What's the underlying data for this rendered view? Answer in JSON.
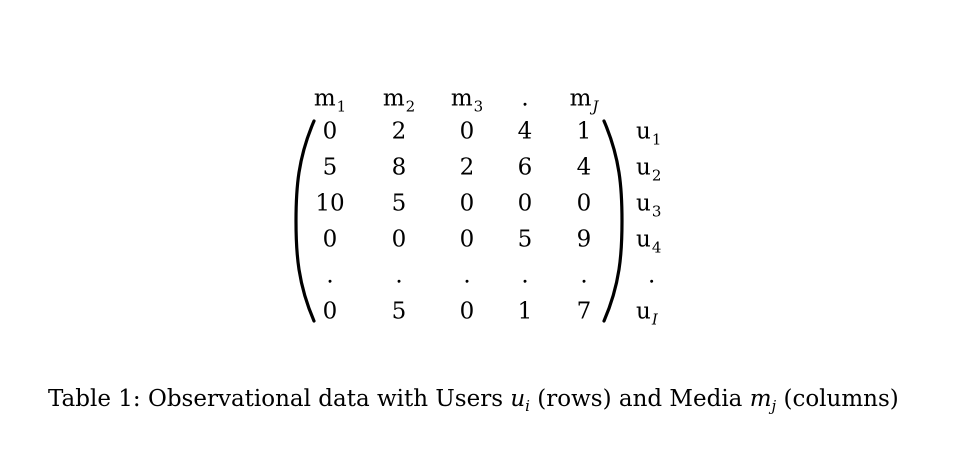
{
  "matrix": {
    "column_headers": [
      {
        "base": "m",
        "sub": "1",
        "sub_italic": false
      },
      {
        "base": "m",
        "sub": "2",
        "sub_italic": false
      },
      {
        "base": "m",
        "sub": "3",
        "sub_italic": false
      },
      {
        "base": ".",
        "sub": "",
        "sub_italic": false
      },
      {
        "base": "m",
        "sub": "J",
        "sub_italic": true
      }
    ],
    "row_labels": [
      {
        "base": "u",
        "sub": "1",
        "sub_italic": false
      },
      {
        "base": "u",
        "sub": "2",
        "sub_italic": false
      },
      {
        "base": "u",
        "sub": "3",
        "sub_italic": false
      },
      {
        "base": "u",
        "sub": "4",
        "sub_italic": false
      },
      {
        "base": ".",
        "sub": "",
        "sub_italic": false
      },
      {
        "base": "u",
        "sub": "I",
        "sub_italic": true
      }
    ],
    "rows": [
      [
        "0",
        "2",
        "0",
        "4",
        "1"
      ],
      [
        "5",
        "8",
        "2",
        "6",
        "4"
      ],
      [
        "10",
        "5",
        "0",
        "0",
        "0"
      ],
      [
        "0",
        "0",
        "0",
        "5",
        "9"
      ],
      [
        ".",
        ".",
        ".",
        ".",
        "."
      ],
      [
        "0",
        "5",
        "0",
        "1",
        "7"
      ]
    ]
  },
  "caption": {
    "prefix": "Table 1:  Observational data with Users ",
    "var1_base": "u",
    "var1_sub": "i",
    "middle": " (rows) and Media ",
    "var2_base": "m",
    "var2_sub": "j",
    "suffix": " (columns)"
  }
}
